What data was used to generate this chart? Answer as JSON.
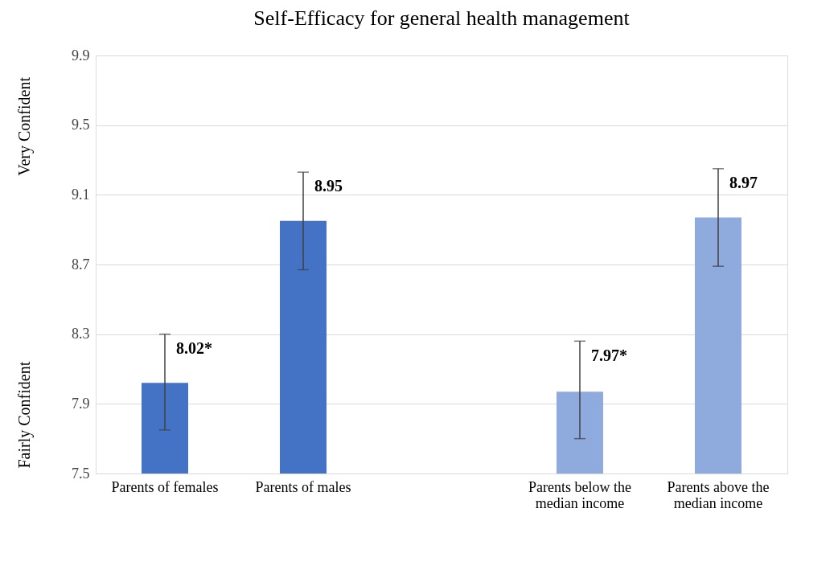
{
  "chart_data": {
    "type": "bar",
    "title": "Self-Efficacy for general health management",
    "categories": [
      "Parents of females",
      "Parents of males",
      null,
      "Parents below the median income",
      "Parents above the median income"
    ],
    "values": [
      8.02,
      8.95,
      null,
      7.97,
      8.97
    ],
    "colors": [
      "#4472c4",
      "#4472c4",
      "#4472c4",
      "#8faadc",
      "#8faadc"
    ],
    "errors": [
      [
        7.75,
        8.3
      ],
      [
        8.67,
        9.23
      ],
      null,
      [
        7.7,
        8.26
      ],
      [
        8.69,
        9.25
      ]
    ],
    "value_labels": [
      "8.02*",
      "8.95",
      null,
      "7.97*",
      "8.97"
    ],
    "ylim": [
      7.5,
      9.9
    ],
    "yticks": [
      7.5,
      7.9,
      8.3,
      8.7,
      9.1,
      9.5,
      9.9
    ],
    "annotations": [
      "Very Confident",
      "Fairly Confident"
    ],
    "grid": "y"
  }
}
